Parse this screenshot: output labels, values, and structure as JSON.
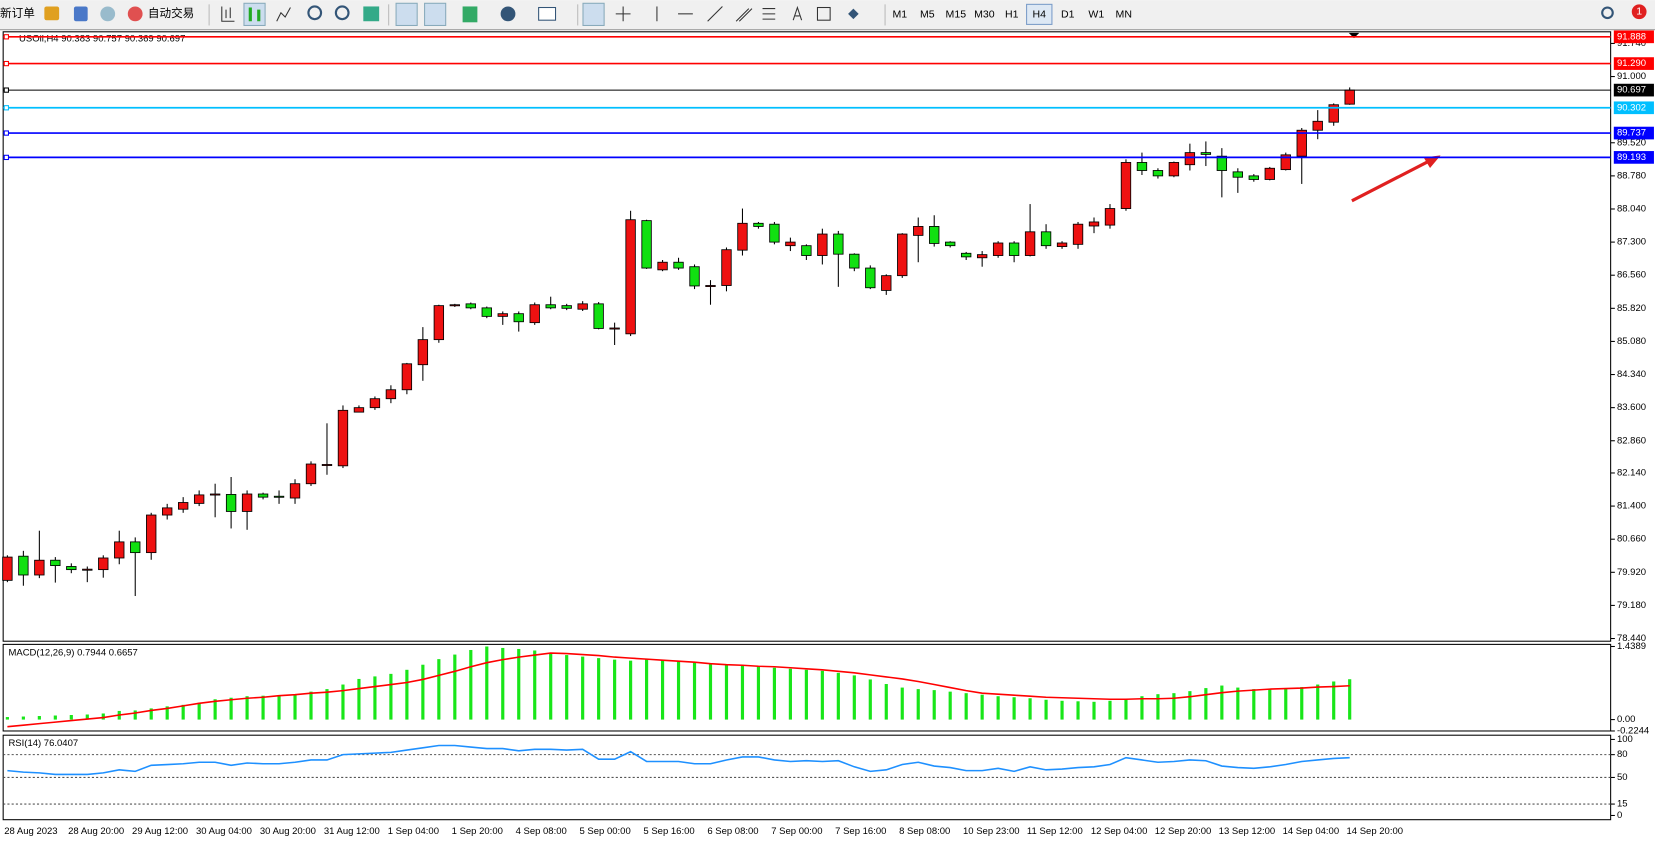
{
  "toolbar": {
    "new_order": "新订单",
    "auto_trading": "自动交易",
    "timeframes": [
      "M1",
      "M5",
      "M15",
      "M30",
      "H1",
      "H4",
      "D1",
      "W1",
      "MN"
    ],
    "active_timeframe": 5,
    "notifications": 1
  },
  "chart_data": [
    {
      "type": "candlestick",
      "title": "USOil,H4  90.383 90.757 90.369 90.697",
      "x": [
        "28 Aug 2023",
        null,
        null,
        null,
        "28 Aug 20:00",
        null,
        null,
        null,
        "29 Aug 12:00",
        null,
        null,
        null,
        "30 Aug 04:00",
        null,
        null,
        null,
        "30 Aug 20:00",
        null,
        null,
        null,
        "31 Aug 12:00",
        null,
        null,
        null,
        "1 Sep 04:00",
        null,
        null,
        null,
        "1 Sep 20:00",
        null,
        null,
        null,
        "4 Sep 08:00",
        null,
        null,
        null,
        "5 Sep 00:00",
        null,
        null,
        null,
        "5 Sep 16:00",
        null,
        null,
        null,
        "6 Sep 08:00",
        null,
        null,
        null,
        "7 Sep 00:00",
        null,
        null,
        null,
        "7 Sep 16:00",
        null,
        null,
        null,
        "8 Sep 08:00",
        null,
        null,
        null,
        "10 Sep 23:00",
        null,
        null,
        null,
        "11 Sep 12:00",
        null,
        null,
        null,
        "12 Sep 04:00",
        null,
        null,
        null,
        "12 Sep 20:00",
        null,
        null,
        null,
        "13 Sep 12:00",
        null,
        null,
        null,
        "14 Sep 04:00",
        null,
        null,
        null,
        "14 Sep 20:00"
      ],
      "open": [
        79.74,
        80.28,
        79.86,
        80.19,
        80.05,
        79.97,
        79.98,
        80.24,
        80.6,
        80.36,
        81.2,
        81.33,
        81.46,
        81.65,
        81.66,
        81.28,
        81.67,
        81.62,
        81.58,
        81.9,
        82.32,
        82.3,
        83.5,
        83.6,
        83.8,
        84.0,
        84.56,
        85.12,
        85.88,
        85.92,
        85.83,
        85.64,
        85.7,
        85.5,
        85.9,
        85.88,
        85.8,
        85.92,
        85.36,
        85.25,
        87.78,
        86.68,
        86.85,
        86.75,
        86.33,
        86.33,
        87.12,
        87.72,
        87.7,
        87.22,
        87.22,
        87.0,
        87.48,
        87.03,
        86.72,
        86.22,
        86.55,
        87.45,
        87.65,
        87.3,
        87.05,
        86.95,
        87.0,
        87.28,
        87.0,
        87.53,
        87.2,
        87.25,
        87.66,
        87.68,
        88.05,
        89.08,
        88.9,
        88.78,
        89.03,
        89.3,
        89.22,
        88.87,
        88.78,
        88.7,
        88.92,
        89.22,
        89.8,
        89.98,
        90.383
      ],
      "high": [
        80.3,
        80.4,
        80.85,
        80.26,
        80.12,
        80.05,
        80.3,
        80.85,
        80.7,
        81.25,
        81.45,
        81.6,
        81.75,
        81.9,
        82.05,
        81.75,
        81.7,
        81.75,
        82.0,
        82.4,
        83.25,
        83.65,
        83.65,
        83.85,
        84.1,
        84.6,
        85.4,
        85.9,
        85.92,
        85.95,
        85.86,
        85.75,
        85.75,
        85.95,
        86.08,
        85.92,
        85.98,
        85.96,
        85.5,
        88.0,
        87.8,
        86.9,
        86.95,
        86.8,
        86.45,
        87.18,
        88.05,
        87.75,
        87.75,
        87.4,
        87.25,
        87.6,
        87.55,
        87.05,
        86.78,
        86.58,
        87.5,
        87.85,
        87.9,
        87.32,
        87.08,
        87.1,
        87.32,
        87.32,
        88.15,
        87.7,
        87.32,
        87.75,
        87.85,
        88.15,
        89.15,
        89.3,
        88.95,
        89.1,
        89.5,
        89.55,
        89.4,
        88.95,
        88.82,
        88.98,
        89.3,
        89.85,
        90.25,
        90.4,
        90.757
      ],
      "low": [
        79.7,
        79.62,
        79.79,
        79.69,
        79.9,
        79.7,
        79.8,
        80.1,
        79.39,
        80.2,
        81.1,
        81.25,
        81.4,
        81.15,
        80.9,
        80.87,
        81.55,
        81.45,
        81.45,
        81.85,
        82.1,
        82.25,
        83.5,
        83.55,
        83.7,
        83.9,
        84.2,
        85.05,
        85.85,
        85.8,
        85.6,
        85.45,
        85.3,
        85.45,
        85.8,
        85.78,
        85.76,
        85.35,
        85.0,
        85.2,
        86.7,
        86.65,
        86.68,
        86.25,
        85.9,
        86.2,
        87.0,
        87.6,
        87.25,
        87.1,
        86.9,
        86.8,
        86.3,
        86.65,
        86.25,
        86.12,
        86.5,
        86.85,
        87.2,
        87.18,
        86.9,
        86.75,
        86.95,
        86.85,
        86.98,
        87.15,
        87.15,
        87.15,
        87.5,
        87.6,
        88.0,
        88.8,
        88.72,
        88.75,
        88.9,
        89.0,
        88.3,
        88.4,
        88.65,
        88.68,
        88.9,
        88.6,
        89.6,
        89.9,
        90.369
      ],
      "close": [
        80.26,
        79.86,
        80.19,
        80.07,
        79.98,
        79.99,
        80.24,
        80.6,
        80.36,
        81.2,
        81.36,
        81.48,
        81.65,
        81.67,
        81.28,
        81.67,
        81.6,
        81.6,
        81.9,
        82.34,
        82.33,
        83.54,
        83.6,
        83.8,
        84.0,
        84.58,
        85.12,
        85.88,
        85.9,
        85.83,
        85.64,
        85.7,
        85.52,
        85.9,
        85.83,
        85.82,
        85.92,
        85.37,
        85.38,
        87.8,
        86.72,
        86.85,
        86.72,
        86.32,
        86.33,
        87.13,
        87.72,
        87.65,
        87.3,
        87.3,
        87.0,
        87.48,
        87.03,
        86.72,
        86.28,
        86.55,
        87.48,
        87.65,
        87.27,
        87.22,
        86.97,
        87.02,
        87.28,
        87.0,
        87.53,
        87.22,
        87.28,
        87.7,
        87.75,
        88.05,
        89.08,
        88.9,
        88.78,
        89.08,
        89.3,
        89.26,
        88.9,
        88.75,
        88.7,
        88.95,
        89.25,
        89.8,
        90.0,
        90.37,
        90.697
      ],
      "up_color": "#ee1111",
      "down_color": "#11e011",
      "ylim": [
        78.38,
        92.0
      ],
      "yticks": [
        {
          "value": 91.74,
          "label": "91.740"
        },
        {
          "value": 91.0,
          "label": "91.000"
        },
        {
          "value": 89.52,
          "label": "89.520"
        },
        {
          "value": 88.78,
          "label": "88.780"
        },
        {
          "value": 88.04,
          "label": "88.040"
        },
        {
          "value": 87.3,
          "label": "87.300"
        },
        {
          "value": 86.56,
          "label": "86.560"
        },
        {
          "value": 85.82,
          "label": "85.820"
        },
        {
          "value": 85.08,
          "label": "85.080"
        },
        {
          "value": 84.34,
          "label": "84.340"
        },
        {
          "value": 83.6,
          "label": "83.600"
        },
        {
          "value": 82.86,
          "label": "82.860"
        },
        {
          "value": 82.14,
          "label": "82.140"
        },
        {
          "value": 81.4,
          "label": "81.400"
        },
        {
          "value": 80.66,
          "label": "80.660"
        },
        {
          "value": 79.92,
          "label": "79.920"
        },
        {
          "value": 79.18,
          "label": "79.180"
        },
        {
          "value": 78.44,
          "label": "78.440"
        }
      ],
      "hlines": [
        {
          "value": 91.888,
          "color": "#ff0000"
        },
        {
          "value": 91.29,
          "label": "91.290",
          "color": "#ff0000"
        },
        {
          "value": 90.697,
          "color": "#000000"
        },
        {
          "value": 90.302,
          "color": "#00bfff"
        },
        {
          "value": 89.737,
          "color": "#0000ff"
        },
        {
          "value": 89.193,
          "color": "#0000ff"
        }
      ]
    },
    {
      "type": "macd",
      "title": "MACD(12,26,9) 0.7944 0.6657",
      "histogram": [
        0.05,
        0.06,
        0.07,
        0.08,
        0.09,
        0.1,
        0.12,
        0.17,
        0.18,
        0.22,
        0.26,
        0.29,
        0.33,
        0.4,
        0.43,
        0.46,
        0.47,
        0.48,
        0.5,
        0.55,
        0.6,
        0.69,
        0.8,
        0.85,
        0.9,
        0.98,
        1.08,
        1.19,
        1.28,
        1.37,
        1.4389,
        1.41,
        1.39,
        1.36,
        1.32,
        1.27,
        1.24,
        1.21,
        1.18,
        1.16,
        1.19,
        1.18,
        1.14,
        1.12,
        1.1,
        1.08,
        1.06,
        1.05,
        1.02,
        1.0,
        0.98,
        0.96,
        0.92,
        0.87,
        0.79,
        0.7,
        0.63,
        0.6,
        0.58,
        0.55,
        0.52,
        0.49,
        0.46,
        0.44,
        0.42,
        0.39,
        0.37,
        0.36,
        0.35,
        0.37,
        0.4,
        0.46,
        0.5,
        0.52,
        0.56,
        0.62,
        0.67,
        0.63,
        0.6,
        0.6,
        0.62,
        0.64,
        0.69,
        0.75,
        0.7944
      ],
      "signal": [
        -0.14,
        -0.11,
        -0.08,
        -0.05,
        -0.02,
        0.01,
        0.04,
        0.09,
        0.13,
        0.18,
        0.22,
        0.27,
        0.32,
        0.36,
        0.39,
        0.42,
        0.44,
        0.47,
        0.49,
        0.52,
        0.54,
        0.57,
        0.61,
        0.65,
        0.69,
        0.73,
        0.79,
        0.87,
        0.95,
        1.04,
        1.12,
        1.18,
        1.23,
        1.27,
        1.31,
        1.3,
        1.28,
        1.26,
        1.23,
        1.21,
        1.19,
        1.17,
        1.15,
        1.13,
        1.1,
        1.08,
        1.07,
        1.05,
        1.04,
        1.02,
        1.0,
        0.98,
        0.95,
        0.92,
        0.88,
        0.84,
        0.8,
        0.75,
        0.69,
        0.63,
        0.57,
        0.52,
        0.5,
        0.48,
        0.46,
        0.44,
        0.43,
        0.42,
        0.41,
        0.4,
        0.4,
        0.41,
        0.41,
        0.42,
        0.45,
        0.49,
        0.53,
        0.56,
        0.58,
        0.6,
        0.61,
        0.62,
        0.64,
        0.65,
        0.6657
      ],
      "histogram_color": "#19e619",
      "signal_color": "#ff0000",
      "ylim": [
        -0.2244,
        1.4389
      ],
      "yticks": [
        1.4389,
        {
          "value": 0,
          "label": "0.00"
        },
        -0.2244
      ]
    },
    {
      "type": "rsi",
      "title": "RSI(14) 76.0407",
      "values": [
        59,
        57,
        56,
        54,
        54,
        54,
        56,
        60,
        58,
        66,
        67,
        68,
        70,
        70,
        66,
        69,
        68,
        68,
        70,
        73,
        73,
        80,
        81,
        82,
        83,
        86,
        89,
        92,
        92,
        90,
        88,
        88,
        85,
        87,
        87,
        86,
        87,
        74,
        74,
        84,
        71,
        71,
        71,
        68,
        68,
        73,
        77,
        77,
        73,
        71,
        72,
        71,
        72,
        64,
        58,
        60,
        67,
        70,
        65,
        63,
        59,
        59,
        62,
        58,
        64,
        60,
        61,
        63,
        64,
        67,
        76,
        73,
        70,
        71,
        73,
        72,
        65,
        63,
        62,
        64,
        67,
        71,
        73,
        75,
        76.0407
      ],
      "color": "#1e90ff",
      "ylim": [
        0,
        100
      ],
      "yticks": [
        100,
        80,
        50,
        15,
        0
      ]
    }
  ]
}
